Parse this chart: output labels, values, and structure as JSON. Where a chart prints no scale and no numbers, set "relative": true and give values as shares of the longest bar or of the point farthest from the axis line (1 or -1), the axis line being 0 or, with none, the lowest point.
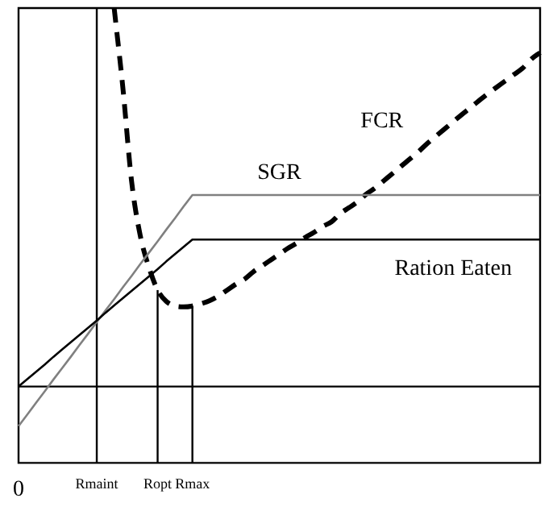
{
  "chart_data": {
    "type": "line",
    "relative": true,
    "legend": false,
    "grid": false,
    "marker": "none",
    "categories": [
      "0",
      null,
      null,
      null,
      null,
      null,
      null,
      null,
      null,
      "Rmaint",
      null,
      null,
      null,
      null,
      null,
      null,
      "Ropt",
      null,
      null,
      null,
      "Rmax",
      null,
      null,
      null,
      null,
      null,
      null,
      null,
      null,
      null,
      null,
      null,
      null,
      null,
      null,
      null,
      null,
      null,
      null,
      null,
      null,
      null,
      null,
      null,
      null,
      null,
      null,
      null,
      null,
      null,
      null,
      null,
      null,
      null,
      null,
      null,
      null,
      null,
      null,
      null,
      null
    ],
    "series": [
      {
        "name": "Ration Eaten",
        "color": "#000000",
        "line_style": "solid",
        "values": [
          0.168,
          0.184,
          0.2,
          0.216,
          0.233,
          0.249,
          0.265,
          0.281,
          0.297,
          0.313,
          0.33,
          0.346,
          0.362,
          0.378,
          0.394,
          0.41,
          0.426,
          0.443,
          0.459,
          0.475,
          0.491,
          0.491,
          0.491,
          0.491,
          0.491,
          0.491,
          0.491,
          0.491,
          0.491,
          0.491,
          0.491,
          0.491,
          0.491,
          0.491,
          0.491,
          0.491,
          0.491,
          0.491,
          0.491,
          0.491,
          0.491,
          0.491,
          0.491,
          0.491,
          0.491,
          0.491,
          0.491,
          0.491,
          0.491,
          0.491,
          0.491,
          0.491,
          0.491,
          0.491,
          0.491,
          0.491,
          0.491,
          0.491,
          0.491,
          0.491,
          0.491
        ]
      },
      {
        "name": "SGR",
        "color": "#808080",
        "line_style": "solid",
        "values": [
          0.081,
          0.106,
          0.132,
          0.157,
          0.183,
          0.208,
          0.233,
          0.259,
          0.284,
          0.31,
          0.335,
          0.36,
          0.386,
          0.411,
          0.437,
          0.462,
          0.487,
          0.513,
          0.538,
          0.564,
          0.589,
          0.589,
          0.589,
          0.589,
          0.589,
          0.589,
          0.589,
          0.589,
          0.589,
          0.589,
          0.589,
          0.589,
          0.589,
          0.589,
          0.589,
          0.589,
          0.589,
          0.589,
          0.589,
          0.589,
          0.589,
          0.589,
          0.589,
          0.589,
          0.589,
          0.589,
          0.589,
          0.589,
          0.589,
          0.589,
          0.589,
          0.589,
          0.589,
          0.589,
          0.589,
          0.589,
          0.589,
          0.589,
          0.589,
          0.589,
          0.589
        ]
      },
      {
        "name": "FCR",
        "color": "#000000",
        "line_style": "dashed",
        "values": [
          null,
          null,
          null,
          null,
          null,
          null,
          null,
          null,
          null,
          null,
          null,
          1.0,
          0.825,
          0.62,
          0.5,
          0.43,
          0.38,
          0.355,
          0.345,
          0.343,
          0.345,
          0.35,
          0.357,
          0.367,
          0.38,
          0.393,
          0.404,
          0.42,
          0.433,
          0.446,
          0.459,
          0.472,
          0.483,
          0.496,
          0.507,
          0.52,
          0.53,
          0.548,
          0.561,
          0.574,
          0.591,
          0.604,
          0.62,
          0.636,
          0.652,
          0.668,
          0.684,
          0.702,
          0.718,
          0.734,
          0.75,
          0.766,
          0.781,
          0.797,
          0.812,
          0.826,
          0.84,
          0.854,
          0.868,
          0.888,
          0.902
        ]
      }
    ],
    "ref_lines": [
      {
        "axis": "y",
        "value": 0.168
      },
      {
        "axis": "x",
        "value": "Rmaint"
      },
      {
        "axis": "x",
        "value": "Ropt"
      },
      {
        "axis": "x",
        "value": "Rmax"
      }
    ]
  }
}
